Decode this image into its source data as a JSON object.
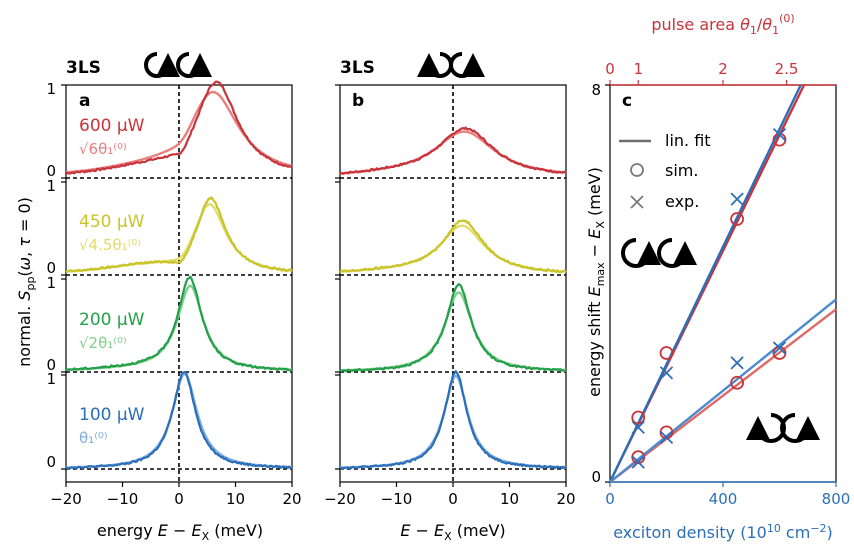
{
  "colors": {
    "red_dark": "#c8343a",
    "red_light": "#e8807f",
    "yellow_dark": "#c9c42a",
    "yellow_light": "#e2db6d",
    "green_dark": "#24a04a",
    "green_light": "#7fcf8d",
    "blue_dark": "#2c6fb8",
    "blue_light": "#7faee0",
    "fit": "#6f6f6f",
    "marker": "#7a7a7a",
    "axis": "#000000"
  },
  "panels": {
    "a": {
      "letter": "a",
      "system": "3LS",
      "polarization_icon": "co-circular-icon"
    },
    "b": {
      "letter": "b",
      "system": "3LS",
      "polarization_icon": "counter-circular-icon"
    },
    "c": {
      "letter": "c"
    }
  },
  "spectra_axes": {
    "ylabel": "normal. S_pp(ω, τ = 0)",
    "a_xlabel": "energy E − E_X (meV)",
    "b_xlabel": "E − E_X (meV)",
    "x_ticks": [
      "−20",
      "−10",
      "0",
      "10",
      "20"
    ],
    "offset_ticks": [
      "0",
      "1",
      "0",
      "1",
      "0",
      "1",
      "0",
      "1"
    ]
  },
  "traces": [
    {
      "power": "600 μW",
      "pulse_area": "√6θ₁⁽⁰⁾",
      "color_key": "red"
    },
    {
      "power": "450 μW",
      "pulse_area": "√4.5θ₁⁽⁰⁾",
      "color_key": "yellow"
    },
    {
      "power": "200 μW",
      "pulse_area": "√2θ₁⁽⁰⁾",
      "color_key": "green"
    },
    {
      "power": "100 μW",
      "pulse_area": "θ₁⁽⁰⁾",
      "color_key": "blue"
    }
  ],
  "legend": {
    "fit": "lin. fit",
    "sim": "sim.",
    "exp": "exp."
  },
  "chart_data": {
    "type": "scatter",
    "title": "",
    "xlabel": "exciton density (10¹⁰ cm⁻²)",
    "ylabel": "energy shift E_max − E_X (meV)",
    "x2label": "pulse area θ₁/θ₁⁽⁰⁾",
    "xlim": [
      0,
      800
    ],
    "ylim": [
      0,
      8
    ],
    "x_ticks": [
      0,
      400,
      800
    ],
    "y_ticks": [
      0,
      8
    ],
    "x2_ticks": [
      {
        "label": "0",
        "density": 0
      },
      {
        "label": "1",
        "density": 100
      },
      {
        "label": "2",
        "density": 400
      },
      {
        "label": "2.5",
        "density": 625
      }
    ],
    "legend_position": "top-left",
    "series": [
      {
        "name": "sim.",
        "group": "co-circular",
        "marker": "circle",
        "color_key": "red_dark",
        "x": [
          100,
          200,
          450,
          600
        ],
        "y": [
          1.3,
          2.6,
          5.3,
          6.9
        ]
      },
      {
        "name": "exp.",
        "group": "co-circular",
        "marker": "cross",
        "color_key": "blue_dark",
        "x": [
          100,
          200,
          450,
          600
        ],
        "y": [
          1.1,
          2.2,
          5.7,
          7.0
        ]
      },
      {
        "name": "sim.",
        "group": "counter-circular",
        "marker": "circle",
        "color_key": "red_dark",
        "x": [
          100,
          200,
          450,
          600
        ],
        "y": [
          0.5,
          1.0,
          2.0,
          2.6
        ]
      },
      {
        "name": "exp.",
        "group": "counter-circular",
        "marker": "cross",
        "color_key": "blue_dark",
        "x": [
          100,
          200,
          450,
          600
        ],
        "y": [
          0.4,
          0.9,
          2.4,
          2.7
        ]
      }
    ],
    "fits": [
      {
        "group": "co-circular",
        "color_key": "red_dark",
        "slope": 0.01165
      },
      {
        "group": "co-circular",
        "color_key": "blue_dark",
        "slope": 0.01185
      },
      {
        "group": "counter-circular",
        "color_key": "red_light_line",
        "slope": 0.00435
      },
      {
        "group": "counter-circular",
        "color_key": "blue_dark_line",
        "slope": 0.0046
      }
    ]
  }
}
